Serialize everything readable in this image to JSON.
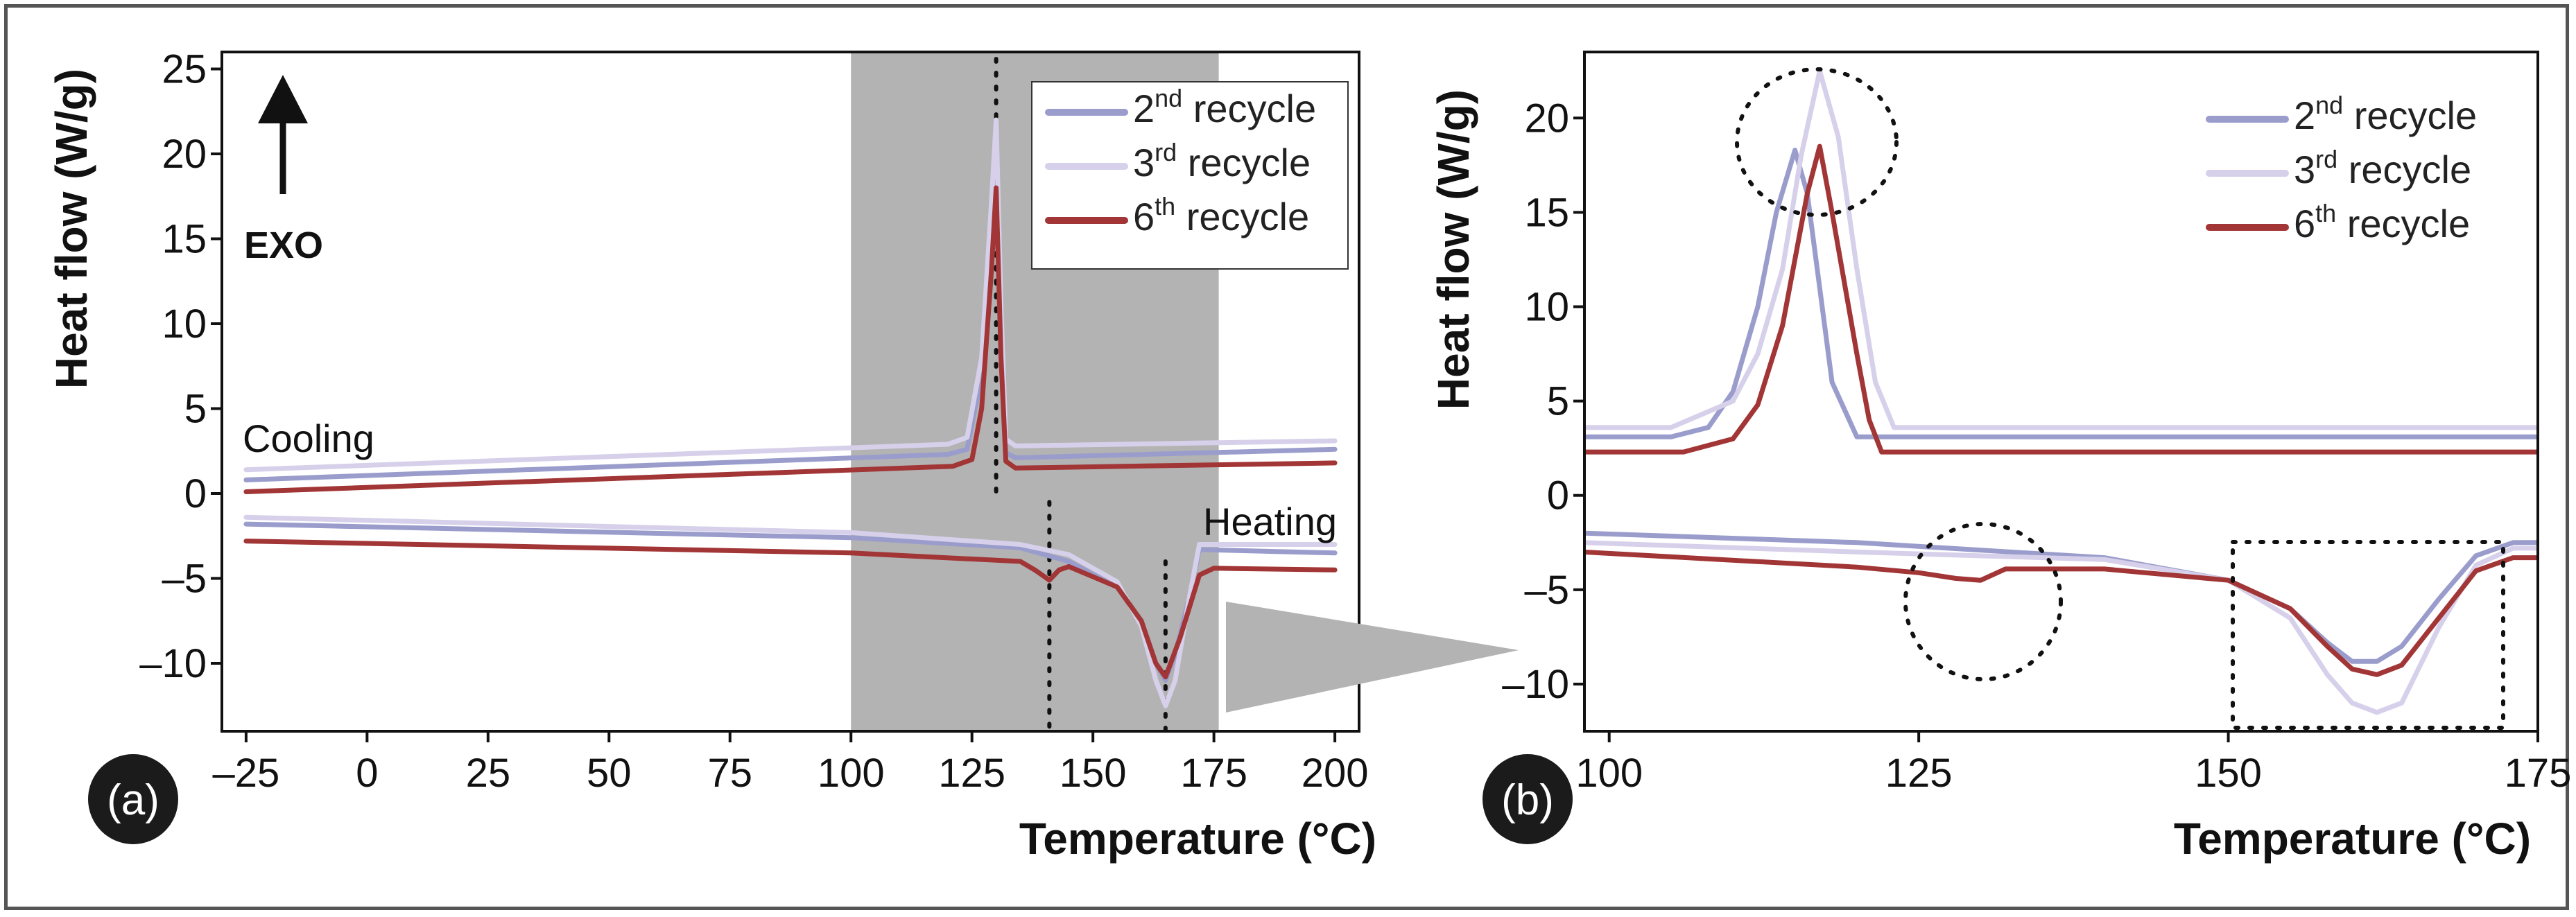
{
  "chart_data": [
    {
      "panel": "(a)",
      "type": "line",
      "xlabel": "Temperature (°C)",
      "ylabel": "Heat flow (W/g)",
      "xlim": [
        -30,
        205
      ],
      "ylim": [
        -14,
        26
      ],
      "xticks": [
        -25,
        0,
        25,
        50,
        75,
        100,
        125,
        150,
        175,
        200
      ],
      "yticks": [
        25,
        20,
        15,
        10,
        5,
        0,
        -5,
        -10
      ],
      "shaded_region": [
        100,
        176
      ],
      "reference_lines_x": [
        130,
        141,
        165
      ],
      "annotations": {
        "exo": "EXO",
        "cooling": "Cooling",
        "heating": "Heating"
      },
      "legend": [
        {
          "name": "2nd recycle",
          "base": "2",
          "sup": "nd",
          "rest": " recycle",
          "color": "#9a9dcc"
        },
        {
          "name": "3rd recycle",
          "base": "3",
          "sup": "rd",
          "rest": " recycle",
          "color": "#d6d0ea"
        },
        {
          "name": "6th recycle",
          "base": "6",
          "sup": "th",
          "rest": " recycle",
          "color": "#a23535"
        }
      ],
      "series": [
        {
          "name": "2nd recycle",
          "segment": "cooling",
          "color": "#9a9dcc",
          "x": [
            -25,
            120,
            124,
            127,
            129,
            130,
            131,
            132,
            134,
            200
          ],
          "y": [
            0.8,
            2.3,
            2.6,
            7,
            16,
            21,
            10,
            2.4,
            2.1,
            2.6
          ]
        },
        {
          "name": "3rd recycle",
          "segment": "cooling",
          "color": "#d6d0ea",
          "x": [
            -25,
            120,
            124,
            127,
            129,
            130,
            131,
            132,
            134,
            200
          ],
          "y": [
            1.4,
            2.9,
            3.3,
            8,
            17,
            22,
            11,
            3.2,
            2.8,
            3.1
          ]
        },
        {
          "name": "6th recycle",
          "segment": "cooling",
          "color": "#a23535",
          "x": [
            -25,
            121,
            125,
            127,
            129,
            130,
            131,
            132,
            134,
            200
          ],
          "y": [
            0.1,
            1.6,
            2,
            5,
            13,
            18,
            8,
            1.9,
            1.5,
            1.8
          ]
        },
        {
          "name": "2nd recycle",
          "segment": "heating",
          "color": "#9a9dcc",
          "x": [
            -25,
            100,
            135,
            145,
            155,
            160,
            163,
            165,
            167,
            170,
            172,
            200
          ],
          "y": [
            -1.8,
            -2.6,
            -3.2,
            -4,
            -5.5,
            -7.5,
            -10,
            -11,
            -9.5,
            -6,
            -3.3,
            -3.5
          ]
        },
        {
          "name": "3rd recycle",
          "segment": "heating",
          "color": "#d6d0ea",
          "x": [
            -25,
            100,
            135,
            145,
            155,
            160,
            163,
            165,
            167,
            170,
            172,
            200
          ],
          "y": [
            -1.4,
            -2.3,
            -3,
            -3.6,
            -5.2,
            -7.8,
            -11,
            -12.5,
            -11,
            -6,
            -3,
            -3
          ]
        },
        {
          "name": "6th recycle",
          "segment": "heating",
          "color": "#a23535",
          "x": [
            -25,
            100,
            135,
            138,
            141,
            143,
            145,
            155,
            160,
            163,
            165,
            168,
            172,
            175,
            200
          ],
          "y": [
            -2.8,
            -3.5,
            -4,
            -4.5,
            -5.1,
            -4.5,
            -4.3,
            -5.5,
            -7.5,
            -10,
            -10.8,
            -8.5,
            -4.8,
            -4.4,
            -4.5
          ]
        }
      ]
    },
    {
      "panel": "(b)",
      "type": "line",
      "xlabel": "Temperature (°C)",
      "ylabel": "Heat flow (W/g)",
      "xlim": [
        98,
        175
      ],
      "ylim": [
        -12.5,
        23.5
      ],
      "xticks": [
        100,
        125,
        150,
        175
      ],
      "yticks": [
        20,
        15,
        10,
        5,
        0,
        -5,
        -10
      ],
      "legend": [
        {
          "name": "2nd recycle",
          "base": "2",
          "sup": "nd",
          "rest": " recycle",
          "color": "#9a9dcc"
        },
        {
          "name": "3rd recycle",
          "base": "3",
          "sup": "rd",
          "rest": " recycle",
          "color": "#d6d0ea"
        },
        {
          "name": "6th recycle",
          "base": "6",
          "sup": "th",
          "rest": " recycle",
          "color": "#a23535"
        }
      ],
      "series": [
        {
          "name": "2nd recycle",
          "segment": "cooling",
          "color": "#9a9dcc",
          "x": [
            98,
            105,
            108,
            110,
            112,
            113.5,
            115,
            116,
            117,
            118,
            120,
            122,
            175
          ],
          "y": [
            3.1,
            3.1,
            3.6,
            5.5,
            10,
            15,
            18.3,
            16,
            11,
            6,
            3.1,
            3.1,
            3.1
          ]
        },
        {
          "name": "3rd recycle",
          "segment": "cooling",
          "color": "#d6d0ea",
          "x": [
            98,
            105,
            110,
            112,
            114,
            115.5,
            117,
            118.5,
            120,
            121.5,
            123,
            175
          ],
          "y": [
            3.6,
            3.6,
            5,
            7.5,
            12,
            18,
            22.5,
            19,
            12,
            6,
            3.6,
            3.6
          ]
        },
        {
          "name": "6th recycle",
          "segment": "cooling",
          "color": "#a23535",
          "x": [
            98,
            106,
            110,
            112,
            114,
            116,
            117,
            118,
            120,
            121,
            122,
            175
          ],
          "y": [
            2.3,
            2.3,
            3,
            4.8,
            9,
            16,
            18.5,
            15,
            7.5,
            4,
            2.3,
            2.3
          ]
        },
        {
          "name": "2nd recycle",
          "segment": "heating",
          "color": "#9a9dcc",
          "x": [
            98,
            120,
            140,
            150,
            155,
            158,
            160,
            162,
            164,
            167,
            170,
            173,
            175
          ],
          "y": [
            -2,
            -2.5,
            -3.3,
            -4.5,
            -6,
            -7.8,
            -8.8,
            -8.8,
            -8,
            -5.5,
            -3.2,
            -2.5,
            -2.5
          ]
        },
        {
          "name": "3rd recycle",
          "segment": "heating",
          "color": "#d6d0ea",
          "x": [
            98,
            120,
            140,
            150,
            155,
            158,
            160,
            162,
            164,
            167,
            170,
            173,
            175
          ],
          "y": [
            -2.5,
            -3,
            -3.4,
            -4.5,
            -6.5,
            -9.5,
            -11,
            -11.5,
            -11,
            -7,
            -3.7,
            -2.8,
            -2.8
          ]
        },
        {
          "name": "6th recycle",
          "segment": "heating",
          "color": "#a23535",
          "x": [
            98,
            120,
            125,
            128,
            130,
            131,
            132,
            140,
            150,
            155,
            158,
            160,
            162,
            164,
            167,
            170,
            173,
            175
          ],
          "y": [
            -3,
            -3.8,
            -4.1,
            -4.4,
            -4.5,
            -4.2,
            -3.9,
            -3.9,
            -4.5,
            -6,
            -8,
            -9.2,
            -9.5,
            -9,
            -6.5,
            -4,
            -3.3,
            -3.3
          ]
        }
      ]
    }
  ]
}
